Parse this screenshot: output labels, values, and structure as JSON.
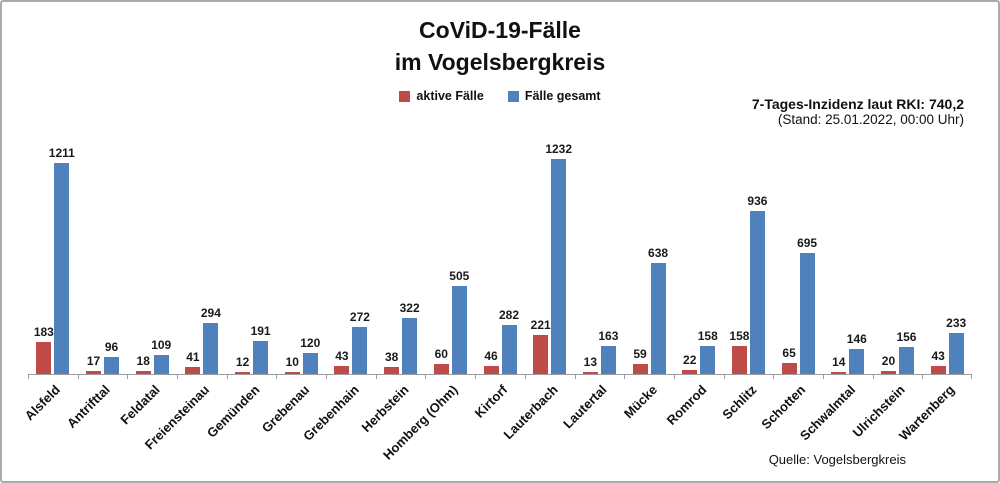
{
  "title": {
    "line1": "CoViD-19-Fälle",
    "line2": "im Vogelsbergkreis"
  },
  "info": {
    "incidence": "7-Tages-Inzidenz laut RKI: 740,2",
    "stand": "(Stand: 25.01.2022, 00:00 Uhr)"
  },
  "source": "Quelle: Vogelsbergkreis",
  "colors": {
    "active": "#be4b48",
    "total": "#4f81bd",
    "axis": "#9d9d9d"
  },
  "chart_data": {
    "type": "bar",
    "title": "CoViD-19-Fälle im Vogelsbergkreis",
    "categories": [
      "Alsfeld",
      "Antrifttal",
      "Feldatal",
      "Freiensteinau",
      "Gemünden",
      "Grebenau",
      "Grebenhain",
      "Herbstein",
      "Homberg (Ohm)",
      "Kirtorf",
      "Lauterbach",
      "Lautertal",
      "Mücke",
      "Romrod",
      "Schlitz",
      "Schotten",
      "Schwalmtal",
      "Ulrichstein",
      "Wartenberg"
    ],
    "series": [
      {
        "name": "aktive Fälle",
        "color": "#be4b48",
        "values": [
          183,
          17,
          18,
          41,
          12,
          10,
          43,
          38,
          60,
          46,
          221,
          13,
          59,
          22,
          158,
          65,
          14,
          20,
          43
        ]
      },
      {
        "name": "Fälle gesamt",
        "color": "#4f81bd",
        "values": [
          1211,
          96,
          109,
          294,
          191,
          120,
          272,
          322,
          505,
          282,
          1232,
          163,
          638,
          158,
          936,
          695,
          146,
          156,
          233
        ]
      }
    ],
    "xlabel": "",
    "ylabel": "",
    "grid": false,
    "y_axis_visible": false,
    "value_labels": true,
    "legend_position": "top-center",
    "x_label_rotation_deg": 45
  }
}
